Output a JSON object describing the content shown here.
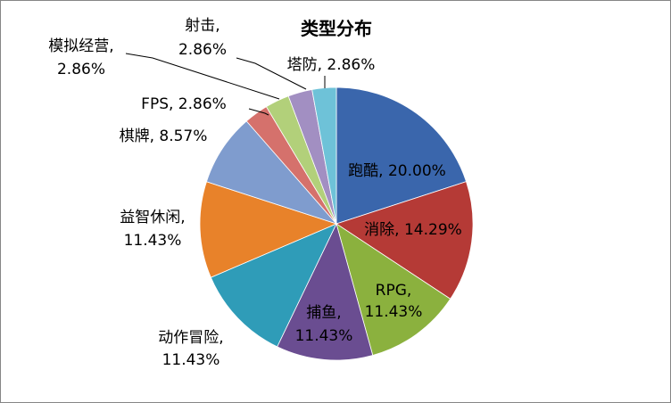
{
  "chart_data": {
    "type": "pie",
    "title": "类型分布",
    "slices": [
      {
        "name": "跑酷",
        "value": 20.0,
        "label": "跑酷, 20.00%",
        "color": "#3a66ac"
      },
      {
        "name": "消除",
        "value": 14.29,
        "label": "消除, 14.29%",
        "color": "#b53a36"
      },
      {
        "name": "RPG",
        "value": 11.43,
        "label": "RPG,|11.43%",
        "color": "#8bb13e"
      },
      {
        "name": "捕鱼",
        "value": 11.43,
        "label": "捕鱼,|11.43%",
        "color": "#6a4d91"
      },
      {
        "name": "动作冒险",
        "value": 11.43,
        "label": "动作冒险,|11.43%",
        "color": "#2f9cb8"
      },
      {
        "name": "益智休闲",
        "value": 11.43,
        "label": "益智休闲,|11.43%",
        "color": "#e8822a"
      },
      {
        "name": "棋牌",
        "value": 8.57,
        "label": "棋牌, 8.57%",
        "color": "#7f9cce"
      },
      {
        "name": "FPS",
        "value": 2.86,
        "label": "FPS, 2.86%",
        "color": "#d5716c"
      },
      {
        "name": "模拟经营",
        "value": 2.86,
        "label": "模拟经营,|2.86%",
        "color": "#b2d07a"
      },
      {
        "name": "射击",
        "value": 2.86,
        "label": "射击,|2.86%",
        "color": "#a28fc2"
      },
      {
        "name": "塔防",
        "value": 2.86,
        "label": "塔防, 2.86%",
        "color": "#6ec2d8"
      }
    ],
    "legend": "none"
  }
}
